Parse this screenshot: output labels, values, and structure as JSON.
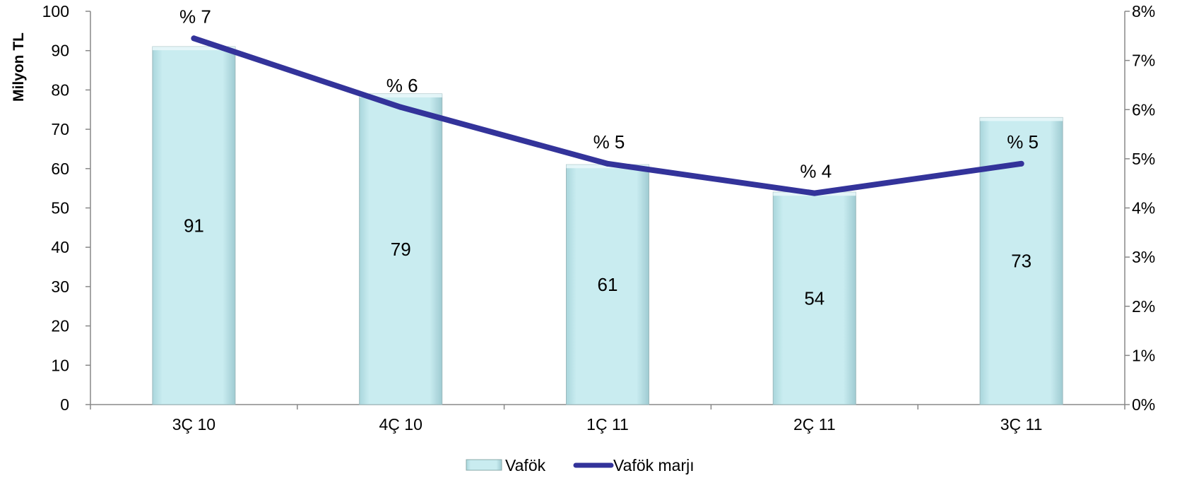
{
  "chart_data": {
    "type": "bar",
    "categories": [
      "3Ç 10",
      "4Ç 10",
      "1Ç 11",
      "2Ç 11",
      "3Ç 11"
    ],
    "series": [
      {
        "name": "Vafök",
        "type": "bar",
        "axis": "left",
        "values": [
          91,
          79,
          61,
          54,
          73
        ],
        "labels": [
          "91",
          "79",
          "61",
          "54",
          "73"
        ],
        "color": "#c9ecf0"
      },
      {
        "name": "Vafök marjı",
        "type": "line",
        "axis": "right",
        "values": [
          7.45,
          6.05,
          4.9,
          4.3,
          4.9
        ],
        "labels": [
          "% 7",
          "% 6",
          "% 5",
          "% 4",
          "% 5"
        ],
        "color": "#33339a"
      }
    ],
    "ylabel": "Milyon TL",
    "ylim": [
      0,
      100
    ],
    "yticks": [
      "0",
      "10",
      "20",
      "30",
      "40",
      "50",
      "60",
      "70",
      "80",
      "90",
      "100"
    ],
    "y2lim": [
      0,
      8
    ],
    "y2ticks": [
      "0%",
      "1%",
      "2%",
      "3%",
      "4%",
      "5%",
      "6%",
      "7%",
      "8%"
    ],
    "grid": false,
    "legend": "bottom"
  }
}
